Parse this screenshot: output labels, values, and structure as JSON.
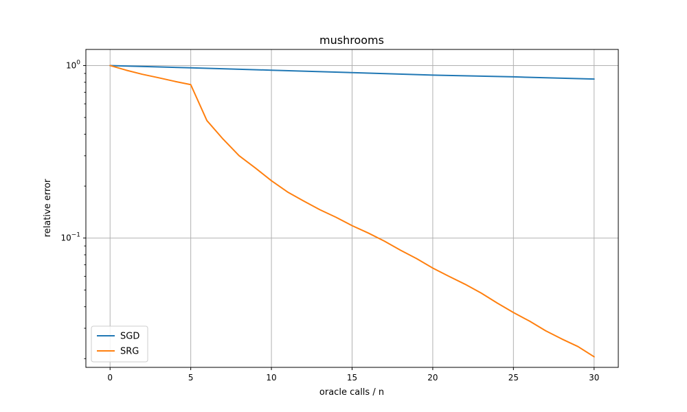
{
  "chart_data": {
    "type": "line",
    "title": "mushrooms",
    "xlabel": "oracle calls / n",
    "ylabel": "relative error",
    "xlim": [
      -1.5,
      31.5
    ],
    "ylim": [
      0.0178,
      1.24
    ],
    "yscale": "log",
    "grid": true,
    "legend_position": "lower-left",
    "x_ticks": [
      {
        "value": 0,
        "label": "0"
      },
      {
        "value": 5,
        "label": "5"
      },
      {
        "value": 10,
        "label": "10"
      },
      {
        "value": 15,
        "label": "15"
      },
      {
        "value": 20,
        "label": "20"
      },
      {
        "value": 25,
        "label": "25"
      },
      {
        "value": 30,
        "label": "30"
      }
    ],
    "y_ticks": [
      {
        "value": 1,
        "base": "10",
        "exp": "0"
      },
      {
        "value": 0.1,
        "base": "10",
        "exp": "−1"
      }
    ],
    "series": [
      {
        "name": "SGD",
        "color": "#1f77b4",
        "x": [
          0,
          5,
          10,
          15,
          20,
          25,
          30
        ],
        "y": [
          1.0,
          0.97,
          0.94,
          0.91,
          0.88,
          0.86,
          0.835
        ]
      },
      {
        "name": "SRG",
        "color": "#ff7f0e",
        "x": [
          0,
          1,
          2,
          3,
          4,
          5,
          6,
          7,
          8,
          9,
          10,
          11,
          12,
          13,
          14,
          15,
          16,
          17,
          18,
          19,
          20,
          21,
          22,
          23,
          24,
          25,
          26,
          27,
          28,
          29,
          30
        ],
        "y": [
          1.0,
          0.94,
          0.89,
          0.85,
          0.81,
          0.775,
          0.48,
          0.375,
          0.3,
          0.255,
          0.215,
          0.185,
          0.164,
          0.146,
          0.132,
          0.118,
          0.107,
          0.096,
          0.085,
          0.076,
          0.067,
          0.06,
          0.054,
          0.048,
          0.042,
          0.037,
          0.033,
          0.029,
          0.026,
          0.0235,
          0.0205
        ]
      }
    ]
  }
}
